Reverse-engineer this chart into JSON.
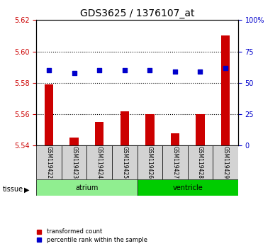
{
  "title": "GDS3625 / 1376107_at",
  "samples": [
    "GSM119422",
    "GSM119423",
    "GSM119424",
    "GSM119425",
    "GSM119426",
    "GSM119427",
    "GSM119428",
    "GSM119429"
  ],
  "red_values": [
    5.579,
    5.545,
    5.555,
    5.562,
    5.56,
    5.548,
    5.56,
    5.61
  ],
  "blue_values": [
    60,
    58,
    60,
    60,
    60,
    59,
    59,
    62
  ],
  "ylim_left": [
    5.54,
    5.62
  ],
  "ylim_right": [
    0,
    100
  ],
  "yticks_left": [
    5.54,
    5.56,
    5.58,
    5.6,
    5.62
  ],
  "yticks_right": [
    0,
    25,
    50,
    75,
    100
  ],
  "ytick_labels_right": [
    "0",
    "25",
    "50",
    "75",
    "100%"
  ],
  "groups": [
    {
      "label": "atrium",
      "start": 0,
      "end": 3,
      "color": "#90EE90"
    },
    {
      "label": "ventricle",
      "start": 4,
      "end": 7,
      "color": "#00CC00"
    }
  ],
  "bar_color": "#CC0000",
  "dot_color": "#0000CC",
  "bar_bottom": 5.54,
  "grid_color": "#000000",
  "bg_color": "#FFFFFF",
  "tick_label_color_left": "#CC0000",
  "tick_label_color_right": "#0000CC",
  "tissue_label": "tissue",
  "legend_items": [
    {
      "label": "transformed count",
      "color": "#CC0000",
      "marker": "s"
    },
    {
      "label": "percentile rank within the sample",
      "color": "#0000CC",
      "marker": "s"
    }
  ]
}
